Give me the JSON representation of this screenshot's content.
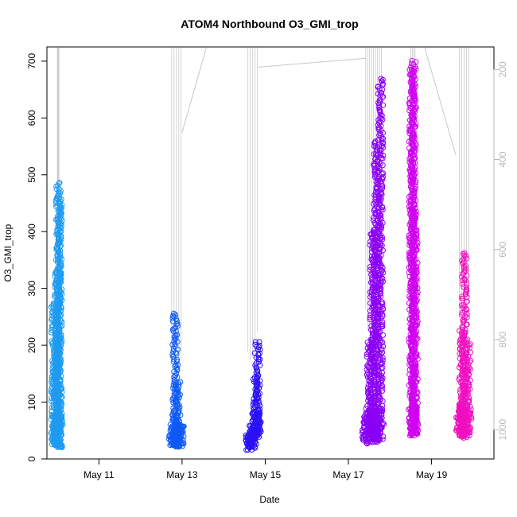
{
  "chart_data": {
    "type": "scatter",
    "title": "ATOM4 Northbound O3_GMI_trop",
    "xlabel": "Date",
    "ylabel": "O3_GMI_trop",
    "x_axis": {
      "type": "date",
      "range": [
        "2018-05-09T18:00",
        "2018-05-20T12:00"
      ],
      "ticks": [
        {
          "value": "2018-05-11",
          "label": "May 11"
        },
        {
          "value": "2018-05-13",
          "label": "May 13"
        },
        {
          "value": "2018-05-15",
          "label": "May 15"
        },
        {
          "value": "2018-05-17",
          "label": "May 17"
        },
        {
          "value": "2018-05-19",
          "label": "May 19"
        }
      ]
    },
    "y_axis": {
      "range": [
        0,
        725
      ],
      "ticks": [
        0,
        100,
        200,
        300,
        400,
        500,
        600,
        700
      ]
    },
    "y2_axis": {
      "label": "",
      "reversed": true,
      "range": [
        1065,
        150
      ],
      "ticks": [
        200,
        400,
        600,
        800,
        1000
      ],
      "color": "#b8b8b8"
    },
    "grid": false,
    "legend": "none",
    "series": [
      {
        "color": "#1e9bf0",
        "flights": [
          {
            "x": [
              "2018-05-09T22:00",
              "2018-05-09T23:00",
              "2018-05-10T00:00",
              "2018-05-10T00:40",
              "2018-05-10T01:10"
            ],
            "y_low": [
              25,
              25,
              24,
              22,
              20
            ],
            "y_high": [
              275,
              190,
              330,
              485,
              460
            ]
          }
        ]
      },
      {
        "color": "#0f5af5",
        "flights": [
          {
            "x": [
              "2018-05-12T18:30",
              "2018-05-12T20:00",
              "2018-05-12T21:30",
              "2018-05-12T23:00"
            ],
            "y_low": [
              24,
              23,
              22,
              22
            ],
            "y_high": [
              60,
              255,
              135,
              60
            ]
          }
        ]
      },
      {
        "color": "#2a10f5",
        "flights": [
          {
            "x": [
              "2018-05-14T14:30",
              "2018-05-14T16:30",
              "2018-05-14T18:30",
              "2018-05-14T19:30"
            ],
            "y_low": [
              16,
              20,
              28,
              40
            ],
            "y_high": [
              42,
              58,
              145,
              205
            ]
          }
        ]
      },
      {
        "color": "#8a00f5",
        "flights": [
          {
            "x": [
              "2018-05-17T10:00",
              "2018-05-17T12:00",
              "2018-05-17T14:00",
              "2018-05-17T16:00",
              "2018-05-17T18:30"
            ],
            "y_low": [
              28,
              35,
              30,
              30,
              35
            ],
            "y_high": [
              75,
              210,
              400,
              560,
              668
            ]
          }
        ]
      },
      {
        "color": "#d100f0",
        "flights": [
          {
            "x": [
              "2018-05-18T12:30",
              "2018-05-18T13:30",
              "2018-05-18T14:30"
            ],
            "y_low": [
              40,
              42,
              45
            ],
            "y_high": [
              685,
              700,
              440
            ]
          }
        ]
      },
      {
        "color": "#f010c0",
        "flights": [
          {
            "x": [
              "2018-05-19T16:00",
              "2018-05-19T17:30",
              "2018-05-19T19:00",
              "2018-05-19T21:00"
            ],
            "y_low": [
              50,
              40,
              38,
              42
            ],
            "y_high": [
              95,
              225,
              362,
              210
            ]
          }
        ]
      }
    ],
    "pressure_trace": {
      "color": "#c8c8c8",
      "segments": [
        {
          "x": [
            "2018-05-10T00:00",
            "2018-05-10T01:00"
          ],
          "y_top": 150,
          "y_bottom": 820
        },
        {
          "x": [
            "2018-05-12T18:00",
            "2018-05-12T23:30"
          ],
          "y_top": 150,
          "y_bottom": 810
        },
        {
          "x": [
            "2018-05-14T14:00",
            "2018-05-14T19:30"
          ],
          "y_top": 150,
          "y_bottom": 820
        },
        {
          "x": [
            "2018-05-17T10:00",
            "2018-05-17T19:00"
          ],
          "y_top": 150,
          "y_bottom": 750
        },
        {
          "x": [
            "2018-05-18T12:00",
            "2018-05-18T14:30"
          ],
          "y_top": 150,
          "y_bottom": 620
        },
        {
          "x": [
            "2018-05-19T16:00",
            "2018-05-19T21:30"
          ],
          "y_top": 150,
          "y_bottom": 740
        }
      ],
      "transits": [
        {
          "x": [
            "2018-05-13T00:00",
            "2018-05-13T14:00"
          ],
          "y": [
            340,
            150
          ]
        },
        {
          "x": [
            "2018-05-14T19:30",
            "2018-05-17T10:00"
          ],
          "y": [
            195,
            175
          ]
        },
        {
          "x": [
            "2018-05-18T20:00",
            "2018-05-19T14:00"
          ],
          "y": [
            150,
            390
          ]
        }
      ]
    }
  }
}
